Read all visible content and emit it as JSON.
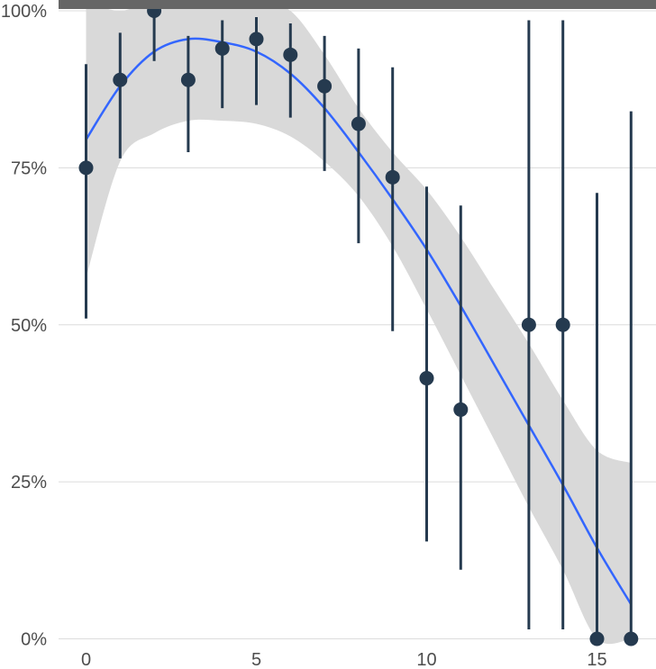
{
  "chart_data": {
    "type": "scatter",
    "title": "",
    "xlabel": "",
    "ylabel": "",
    "xlim": [
      -0.8,
      16.8
    ],
    "ylim": [
      0,
      100
    ],
    "x_ticks": [
      0,
      5,
      10,
      15
    ],
    "x_tick_labels": [
      "0",
      "5",
      "10",
      "15"
    ],
    "y_ticks": [
      0,
      25,
      50,
      75,
      100
    ],
    "y_tick_labels": [
      "0%",
      "25%",
      "50%",
      "75%",
      "100%"
    ],
    "grid": true,
    "colors": {
      "point": "#253a4f",
      "errorbar": "#253a4f",
      "smooth_line": "#3366ff",
      "ribbon": "#d9d9d9",
      "gridline": "#dcdcdc",
      "title_bar": "#666666"
    },
    "points": [
      {
        "x": 0,
        "y": 75.0,
        "low": 51.0,
        "high": 91.5
      },
      {
        "x": 1,
        "y": 89.0,
        "low": 76.5,
        "high": 96.5
      },
      {
        "x": 2,
        "y": 100.0,
        "low": 92.0,
        "high": 100.0
      },
      {
        "x": 3,
        "y": 89.0,
        "low": 77.5,
        "high": 96.0
      },
      {
        "x": 4,
        "y": 94.0,
        "low": 84.5,
        "high": 98.5
      },
      {
        "x": 5,
        "y": 95.5,
        "low": 85.0,
        "high": 99.0
      },
      {
        "x": 6,
        "y": 93.0,
        "low": 83.0,
        "high": 98.0
      },
      {
        "x": 7,
        "y": 88.0,
        "low": 74.5,
        "high": 96.0
      },
      {
        "x": 8,
        "y": 82.0,
        "low": 63.0,
        "high": 94.0
      },
      {
        "x": 9,
        "y": 73.5,
        "low": 49.0,
        "high": 91.0
      },
      {
        "x": 10,
        "y": 41.5,
        "low": 15.5,
        "high": 72.0
      },
      {
        "x": 11,
        "y": 36.5,
        "low": 11.0,
        "high": 69.0
      },
      {
        "x": 13,
        "y": 50.0,
        "low": 1.5,
        "high": 98.5
      },
      {
        "x": 14,
        "y": 50.0,
        "low": 1.5,
        "high": 98.5
      },
      {
        "x": 15,
        "y": 0.0,
        "low": 0.0,
        "high": 71.0
      },
      {
        "x": 16,
        "y": 0.0,
        "low": 0.0,
        "high": 84.0
      }
    ],
    "smooth": [
      {
        "x": 0,
        "y": 79.5,
        "low": 57.5,
        "high": 101.5
      },
      {
        "x": 1,
        "y": 88.0,
        "low": 76.0,
        "high": 100.0
      },
      {
        "x": 2,
        "y": 93.5,
        "low": 80.5,
        "high": 106.5
      },
      {
        "x": 3,
        "y": 95.5,
        "low": 82.5,
        "high": 108.5
      },
      {
        "x": 4,
        "y": 95.0,
        "low": 82.5,
        "high": 107.5
      },
      {
        "x": 5,
        "y": 93.5,
        "low": 82.0,
        "high": 105.0
      },
      {
        "x": 6,
        "y": 90.0,
        "low": 80.0,
        "high": 100.0
      },
      {
        "x": 7,
        "y": 84.5,
        "low": 76.0,
        "high": 93.0
      },
      {
        "x": 8,
        "y": 77.5,
        "low": 70.5,
        "high": 84.5
      },
      {
        "x": 9,
        "y": 70.0,
        "low": 62.5,
        "high": 77.5
      },
      {
        "x": 10,
        "y": 62.0,
        "low": 52.5,
        "high": 71.5
      },
      {
        "x": 11,
        "y": 53.0,
        "low": 42.0,
        "high": 64.0
      },
      {
        "x": 12,
        "y": 43.5,
        "low": 31.5,
        "high": 55.5
      },
      {
        "x": 13,
        "y": 34.0,
        "low": 21.0,
        "high": 47.0
      },
      {
        "x": 14,
        "y": 24.5,
        "low": 11.0,
        "high": 38.0
      },
      {
        "x": 15,
        "y": 14.5,
        "low": 0.0,
        "high": 30.0
      },
      {
        "x": 16,
        "y": 5.5,
        "low": -20.0,
        "high": 28.0
      }
    ]
  }
}
